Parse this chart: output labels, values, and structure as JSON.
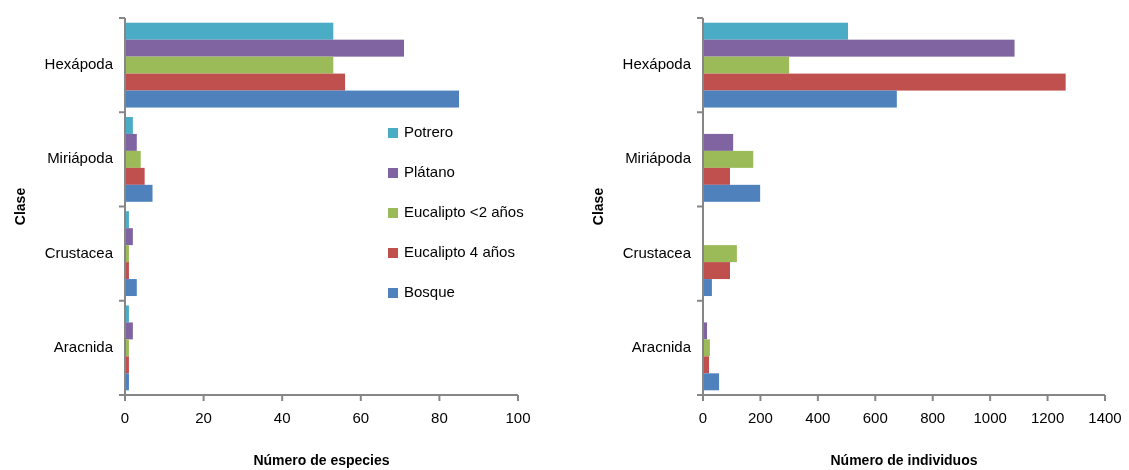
{
  "chart_data": [
    {
      "type": "bar",
      "orientation": "horizontal",
      "xlabel": "Número de especies",
      "ylabel": "Clase",
      "categories": [
        "Hexápoda",
        "Miriápoda",
        "Crustacea",
        "Aracnida"
      ],
      "series": [
        {
          "name": "Potrero",
          "color": "#4bacc6",
          "values": [
            53,
            2,
            1,
            1
          ]
        },
        {
          "name": "Plátano",
          "color": "#8064a2",
          "values": [
            71,
            3,
            2,
            2
          ]
        },
        {
          "name": "Eucalipto <2 años",
          "color": "#9bbb59",
          "values": [
            53,
            4,
            1,
            1
          ]
        },
        {
          "name": "Eucalipto 4 años",
          "color": "#c0504d",
          "values": [
            56,
            5,
            1,
            1
          ]
        },
        {
          "name": "Bosque",
          "color": "#4f81bd",
          "values": [
            85,
            7,
            3,
            1
          ]
        }
      ],
      "xlim": [
        0,
        100
      ],
      "xticks": [
        0,
        20,
        40,
        60,
        80,
        100
      ],
      "legend": "right",
      "grid": false
    },
    {
      "type": "bar",
      "orientation": "horizontal",
      "xlabel": "Número de individuos",
      "ylabel": "Clase",
      "categories": [
        "Hexápoda",
        "Miriápoda",
        "Crustacea",
        "Aracnida"
      ],
      "series": [
        {
          "color": "#4bacc6",
          "values": [
            505,
            0,
            0,
            0
          ]
        },
        {
          "color": "#8064a2",
          "values": [
            1085,
            105,
            0,
            14
          ]
        },
        {
          "color": "#9bbb59",
          "values": [
            300,
            175,
            118,
            24
          ]
        },
        {
          "color": "#c0504d",
          "values": [
            1263,
            94,
            94,
            21
          ]
        },
        {
          "color": "#4f81bd",
          "values": [
            675,
            199,
            31,
            56
          ]
        }
      ],
      "xlim": [
        0,
        1400
      ],
      "xticks": [
        0,
        200,
        400,
        600,
        800,
        1000,
        1200,
        1400
      ],
      "legend": false,
      "grid": false
    }
  ]
}
